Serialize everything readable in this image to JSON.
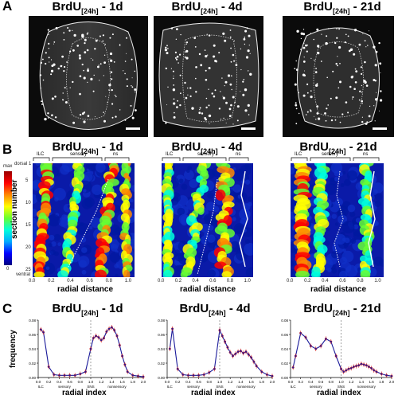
{
  "panel_labels": {
    "a": "A",
    "b": "B",
    "c": "C"
  },
  "titles": {
    "d1": {
      "prefix": "BrdU",
      "sub": "[24h]",
      "suffix": " - 1d"
    },
    "d4": {
      "prefix": "BrdU",
      "sub": "[24h]",
      "suffix": " - 4d"
    },
    "d21": {
      "prefix": "BrdU",
      "sub": "[24h]",
      "suffix": " - 21d"
    }
  },
  "heatmaps": {
    "region_labels": {
      "ilc": "ILC",
      "sensory": "sensory",
      "ns": "ns"
    },
    "y_axis_label": "section number",
    "y_top_label": "dorsal 1",
    "y_bottom_label": "ventral",
    "y_ticks": [
      "5",
      "10",
      "15",
      "20",
      "25"
    ],
    "x_label": "radial distance",
    "x_ticks": [
      "0.0",
      "0.2",
      "0.4",
      "0.6",
      "0.8",
      "1.0"
    ],
    "colorbar": {
      "max": "max",
      "min": "0",
      "colors": [
        "#000080",
        "#0000ff",
        "#00aaff",
        "#00ffdd",
        "#66ff33",
        "#ffff00",
        "#ff8800",
        "#ff0000",
        "#990000"
      ]
    }
  },
  "line_axes": {
    "y_label": "frequency",
    "x_label": "radial index",
    "x_ticks": [
      "0.0",
      "0.2",
      "0.4",
      "0.6",
      "0.8",
      "1.0",
      "1.2",
      "1.4",
      "1.6",
      "1.8",
      "2.0"
    ],
    "y_ticks": [
      "0.00",
      "0.02",
      "0.04",
      "0.06",
      "0.08"
    ],
    "zone_labels": {
      "ilc": "ILC",
      "sensory": "sensory",
      "sns": "SNS",
      "nonsensory": "nonsensory"
    },
    "colors": {
      "line": "#1a1a9a",
      "marker": "#d42020"
    }
  },
  "chart_data": [
    {
      "type": "line",
      "title": "BrdU[24h] - 1d",
      "xlabel": "radial index",
      "ylabel": "frequency",
      "xlim": [
        0,
        2
      ],
      "ylim": [
        0,
        0.08
      ],
      "series": [
        {
          "x": [
            0.05,
            0.1,
            0.2,
            0.3,
            0.4,
            0.5,
            0.6,
            0.7,
            0.8,
            0.9,
            1.0,
            1.05,
            1.1,
            1.15,
            1.2,
            1.25,
            1.3,
            1.35,
            1.4,
            1.45,
            1.5,
            1.55,
            1.6,
            1.65,
            1.7,
            1.8,
            1.9,
            2.0
          ],
          "y": [
            0.067,
            0.063,
            0.015,
            0.004,
            0.003,
            0.003,
            0.003,
            0.003,
            0.005,
            0.008,
            0.04,
            0.055,
            0.058,
            0.056,
            0.052,
            0.055,
            0.064,
            0.068,
            0.07,
            0.066,
            0.058,
            0.045,
            0.03,
            0.018,
            0.008,
            0.003,
            0.002,
            0.001
          ]
        }
      ]
    },
    {
      "type": "line",
      "title": "BrdU[24h] - 4d",
      "xlabel": "radial index",
      "ylabel": "frequency",
      "xlim": [
        0,
        2
      ],
      "ylim": [
        0,
        0.08
      ],
      "series": [
        {
          "x": [
            0.05,
            0.1,
            0.2,
            0.3,
            0.4,
            0.5,
            0.6,
            0.7,
            0.8,
            0.9,
            1.0,
            1.05,
            1.1,
            1.15,
            1.2,
            1.25,
            1.3,
            1.35,
            1.4,
            1.45,
            1.5,
            1.55,
            1.6,
            1.65,
            1.7,
            1.8,
            1.9,
            2.0
          ],
          "y": [
            0.04,
            0.068,
            0.012,
            0.004,
            0.003,
            0.003,
            0.003,
            0.004,
            0.007,
            0.012,
            0.066,
            0.058,
            0.05,
            0.042,
            0.035,
            0.03,
            0.033,
            0.036,
            0.037,
            0.034,
            0.036,
            0.032,
            0.028,
            0.022,
            0.016,
            0.008,
            0.004,
            0.002
          ]
        }
      ]
    },
    {
      "type": "line",
      "title": "BrdU[24h] - 21d",
      "xlabel": "radial index",
      "ylabel": "frequency",
      "xlim": [
        0,
        2
      ],
      "ylim": [
        0,
        0.08
      ],
      "series": [
        {
          "x": [
            0.05,
            0.1,
            0.2,
            0.3,
            0.4,
            0.5,
            0.6,
            0.7,
            0.8,
            0.9,
            1.0,
            1.05,
            1.1,
            1.15,
            1.2,
            1.25,
            1.3,
            1.35,
            1.4,
            1.45,
            1.5,
            1.55,
            1.6,
            1.65,
            1.7,
            1.8,
            1.9,
            2.0
          ],
          "y": [
            0.014,
            0.03,
            0.062,
            0.056,
            0.044,
            0.04,
            0.044,
            0.054,
            0.05,
            0.03,
            0.012,
            0.008,
            0.01,
            0.012,
            0.013,
            0.015,
            0.016,
            0.017,
            0.019,
            0.018,
            0.017,
            0.015,
            0.013,
            0.01,
            0.008,
            0.005,
            0.003,
            0.002
          ]
        }
      ]
    }
  ]
}
